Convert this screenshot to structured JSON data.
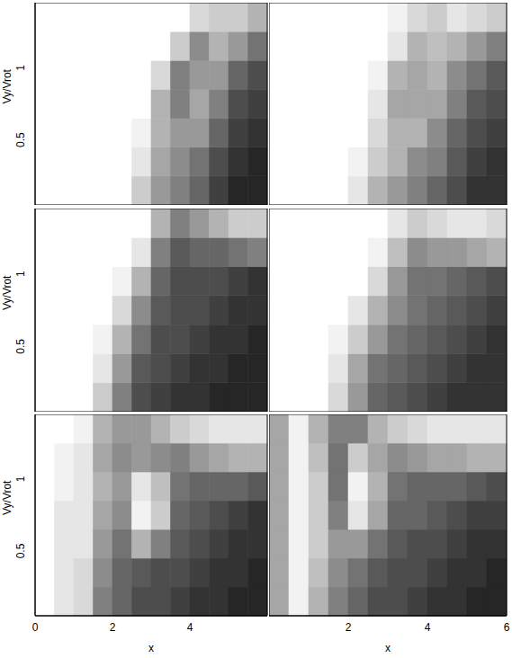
{
  "chart_data": [
    {
      "type": "heatmap",
      "xlim": [
        0,
        6
      ],
      "ylim": [
        0.05,
        1.45
      ],
      "yticks": [
        0.5,
        1
      ],
      "y_label": "Vy/Vrot",
      "tick_labels": "y",
      "x_edges": [
        0,
        0.5,
        1,
        1.5,
        2,
        2.5,
        3,
        3.5,
        4,
        4.5,
        5,
        5.5,
        6
      ],
      "y_edges": [
        0.05,
        0.25,
        0.45,
        0.65,
        0.85,
        1.05,
        1.25,
        1.45
      ],
      "cells": [
        [
          0,
          0,
          0,
          0,
          0,
          0.2,
          0.4,
          0.5,
          0.6,
          0.75,
          0.85,
          0.85
        ],
        [
          0,
          0,
          0,
          0,
          0,
          0.1,
          0.35,
          0.45,
          0.55,
          0.7,
          0.8,
          0.85
        ],
        [
          0,
          0,
          0,
          0,
          0,
          0.05,
          0.3,
          0.4,
          0.4,
          0.6,
          0.75,
          0.8
        ],
        [
          0,
          0,
          0,
          0,
          0,
          0,
          0.3,
          0.5,
          0.35,
          0.5,
          0.7,
          0.75
        ],
        [
          0,
          0,
          0,
          0,
          0,
          0,
          0.15,
          0.5,
          0.4,
          0.4,
          0.6,
          0.7
        ],
        [
          0,
          0,
          0,
          0,
          0,
          0,
          0,
          0.2,
          0.45,
          0.3,
          0.4,
          0.55
        ],
        [
          0,
          0,
          0,
          0,
          0,
          0,
          0,
          0,
          0.15,
          0.2,
          0.2,
          0.3
        ]
      ]
    },
    {
      "type": "heatmap",
      "xlim": [
        0,
        6
      ],
      "ylim": [
        0.05,
        1.45
      ],
      "tick_labels": false,
      "x_edges": [
        0,
        0.5,
        1,
        1.5,
        2,
        2.5,
        3,
        3.5,
        4,
        4.5,
        5,
        5.5,
        6
      ],
      "y_edges": [
        0.05,
        0.25,
        0.45,
        0.65,
        0.85,
        1.05,
        1.25,
        1.45
      ],
      "cells": [
        [
          0,
          0,
          0,
          0,
          0.1,
          0.3,
          0.4,
          0.5,
          0.6,
          0.7,
          0.8,
          0.8
        ],
        [
          0,
          0,
          0,
          0,
          0.05,
          0.2,
          0.3,
          0.45,
          0.5,
          0.65,
          0.75,
          0.8
        ],
        [
          0,
          0,
          0,
          0,
          0,
          0.15,
          0.3,
          0.3,
          0.45,
          0.6,
          0.7,
          0.75
        ],
        [
          0,
          0,
          0,
          0,
          0,
          0.1,
          0.35,
          0.35,
          0.35,
          0.5,
          0.65,
          0.7
        ],
        [
          0,
          0,
          0,
          0,
          0,
          0.05,
          0.3,
          0.35,
          0.3,
          0.45,
          0.55,
          0.65
        ],
        [
          0,
          0,
          0,
          0,
          0,
          0,
          0.1,
          0.3,
          0.25,
          0.3,
          0.4,
          0.5
        ],
        [
          0,
          0,
          0,
          0,
          0,
          0,
          0.05,
          0.15,
          0.2,
          0.1,
          0.15,
          0.2
        ]
      ]
    },
    {
      "type": "heatmap",
      "xlim": [
        0,
        6
      ],
      "ylim": [
        0.05,
        1.45
      ],
      "yticks": [
        0.5,
        1
      ],
      "y_label": "Vy/Vrot",
      "tick_labels": "y",
      "x_edges": [
        0,
        0.5,
        1,
        1.5,
        2,
        2.5,
        3,
        3.5,
        4,
        4.5,
        5,
        5.5,
        6
      ],
      "y_edges": [
        0.05,
        0.25,
        0.45,
        0.65,
        0.85,
        1.05,
        1.25,
        1.45
      ],
      "cells": [
        [
          0,
          0,
          0,
          0.2,
          0.5,
          0.7,
          0.75,
          0.8,
          0.8,
          0.85,
          0.85,
          0.85
        ],
        [
          0,
          0,
          0,
          0.1,
          0.4,
          0.65,
          0.7,
          0.75,
          0.8,
          0.8,
          0.85,
          0.85
        ],
        [
          0,
          0,
          0,
          0.05,
          0.3,
          0.55,
          0.7,
          0.7,
          0.75,
          0.8,
          0.8,
          0.85
        ],
        [
          0,
          0,
          0,
          0,
          0.15,
          0.45,
          0.65,
          0.7,
          0.7,
          0.75,
          0.8,
          0.8
        ],
        [
          0,
          0,
          0,
          0,
          0.05,
          0.3,
          0.6,
          0.7,
          0.7,
          0.7,
          0.75,
          0.8
        ],
        [
          0,
          0,
          0,
          0,
          0,
          0.1,
          0.5,
          0.65,
          0.6,
          0.6,
          0.55,
          0.5
        ],
        [
          0,
          0,
          0,
          0,
          0,
          0,
          0.3,
          0.5,
          0.4,
          0.3,
          0.2,
          0.2
        ]
      ]
    },
    {
      "type": "heatmap",
      "xlim": [
        0,
        6
      ],
      "ylim": [
        0.05,
        1.45
      ],
      "tick_labels": false,
      "x_edges": [
        0,
        0.5,
        1,
        1.5,
        2,
        2.5,
        3,
        3.5,
        4,
        4.5,
        5,
        5.5,
        6
      ],
      "y_edges": [
        0.05,
        0.25,
        0.45,
        0.65,
        0.85,
        1.05,
        1.25,
        1.45
      ],
      "cells": [
        [
          0,
          0,
          0,
          0.15,
          0.4,
          0.6,
          0.65,
          0.7,
          0.75,
          0.8,
          0.8,
          0.8
        ],
        [
          0,
          0,
          0,
          0.1,
          0.35,
          0.55,
          0.6,
          0.65,
          0.7,
          0.75,
          0.8,
          0.8
        ],
        [
          0,
          0,
          0,
          0.05,
          0.2,
          0.4,
          0.55,
          0.6,
          0.65,
          0.7,
          0.75,
          0.8
        ],
        [
          0,
          0,
          0,
          0,
          0.1,
          0.3,
          0.45,
          0.55,
          0.6,
          0.65,
          0.7,
          0.75
        ],
        [
          0,
          0,
          0,
          0,
          0,
          0.15,
          0.4,
          0.55,
          0.55,
          0.6,
          0.65,
          0.7
        ],
        [
          0,
          0,
          0,
          0,
          0,
          0.05,
          0.25,
          0.45,
          0.4,
          0.4,
          0.35,
          0.3
        ],
        [
          0,
          0,
          0,
          0,
          0,
          0,
          0.1,
          0.2,
          0.15,
          0.1,
          0.1,
          0.15
        ]
      ]
    },
    {
      "type": "heatmap",
      "xlim": [
        0,
        6
      ],
      "ylim": [
        0.05,
        1.45
      ],
      "xticks": [
        0,
        2,
        4
      ],
      "yticks": [
        0.5,
        1
      ],
      "x_label": "x",
      "y_label": "Vy/Vrot",
      "tick_labels": true,
      "x_edges": [
        0,
        0.5,
        1,
        1.5,
        2,
        2.5,
        3,
        3.5,
        4,
        4.5,
        5,
        5.5,
        6
      ],
      "y_edges": [
        0.05,
        0.25,
        0.45,
        0.65,
        0.85,
        1.05,
        1.25,
        1.45
      ],
      "cells": [
        [
          0,
          0.1,
          0.15,
          0.5,
          0.6,
          0.7,
          0.7,
          0.75,
          0.8,
          0.8,
          0.85,
          0.85
        ],
        [
          0,
          0.1,
          0.15,
          0.45,
          0.6,
          0.65,
          0.7,
          0.7,
          0.75,
          0.8,
          0.8,
          0.85
        ],
        [
          0,
          0.1,
          0.1,
          0.4,
          0.55,
          0.3,
          0.5,
          0.65,
          0.7,
          0.75,
          0.8,
          0.8
        ],
        [
          0,
          0.1,
          0.1,
          0.35,
          0.45,
          0.05,
          0.2,
          0.6,
          0.65,
          0.7,
          0.75,
          0.8
        ],
        [
          0,
          0.05,
          0.1,
          0.3,
          0.4,
          0.1,
          0.25,
          0.55,
          0.6,
          0.6,
          0.6,
          0.65
        ],
        [
          0,
          0.05,
          0.1,
          0.35,
          0.45,
          0.4,
          0.45,
          0.5,
          0.4,
          0.35,
          0.3,
          0.3
        ],
        [
          0,
          0,
          0.05,
          0.3,
          0.4,
          0.4,
          0.3,
          0.2,
          0.15,
          0.1,
          0.1,
          0.1
        ]
      ]
    },
    {
      "type": "heatmap",
      "xlim": [
        0,
        6
      ],
      "ylim": [
        0.05,
        1.45
      ],
      "xticks": [
        2,
        4,
        6
      ],
      "x_label": "x",
      "tick_labels": "x",
      "x_edges": [
        0,
        0.5,
        1,
        1.5,
        2,
        2.5,
        3,
        3.5,
        4,
        4.5,
        5,
        5.5,
        6
      ],
      "y_edges": [
        0.05,
        0.25,
        0.45,
        0.65,
        0.85,
        1.05,
        1.25,
        1.45
      ],
      "cells": [
        [
          0.35,
          0.05,
          0.3,
          0.5,
          0.6,
          0.7,
          0.7,
          0.75,
          0.8,
          0.8,
          0.85,
          0.85
        ],
        [
          0.35,
          0.05,
          0.25,
          0.45,
          0.55,
          0.65,
          0.7,
          0.7,
          0.75,
          0.8,
          0.8,
          0.85
        ],
        [
          0.35,
          0.05,
          0.2,
          0.4,
          0.4,
          0.55,
          0.65,
          0.7,
          0.7,
          0.75,
          0.8,
          0.8
        ],
        [
          0.35,
          0.05,
          0.2,
          0.5,
          0.1,
          0.35,
          0.6,
          0.6,
          0.65,
          0.7,
          0.75,
          0.75
        ],
        [
          0.35,
          0.05,
          0.2,
          0.55,
          0.05,
          0.3,
          0.55,
          0.6,
          0.6,
          0.6,
          0.65,
          0.7
        ],
        [
          0.35,
          0.05,
          0.25,
          0.55,
          0.2,
          0.35,
          0.45,
          0.4,
          0.35,
          0.35,
          0.3,
          0.3
        ],
        [
          0.35,
          0.05,
          0.3,
          0.5,
          0.5,
          0.3,
          0.2,
          0.15,
          0.1,
          0.1,
          0.1,
          0.1
        ]
      ]
    }
  ]
}
